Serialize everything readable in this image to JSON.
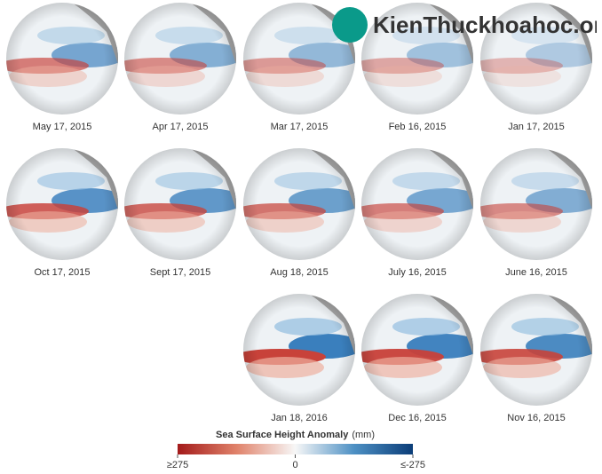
{
  "panels": [
    {
      "label": "Jan 17, 2015"
    },
    {
      "label": "Feb 16, 2015"
    },
    {
      "label": "Mar 17, 2015"
    },
    {
      "label": "Apr 17, 2015"
    },
    {
      "label": "May 17, 2015"
    },
    {
      "label": "June 16, 2015"
    },
    {
      "label": "July 16, 2015"
    },
    {
      "label": "Aug 18, 2015"
    },
    {
      "label": "Sept 17, 2015"
    },
    {
      "label": "Oct 17, 2015"
    },
    {
      "label": "Nov 16, 2015"
    },
    {
      "label": "Dec 16, 2015"
    },
    {
      "label": "Jan 18, 2016"
    }
  ],
  "legend": {
    "title": "Sea Surface Height Anomaly",
    "unit": "(mm)",
    "lim": [
      -275,
      275
    ],
    "ticks": [
      {
        "value": -275,
        "label": "≤-275"
      },
      0,
      {
        "value": 275,
        "label": "≥275"
      }
    ]
  },
  "watermark": {
    "text": "KienThuckhoahoc.org"
  }
}
